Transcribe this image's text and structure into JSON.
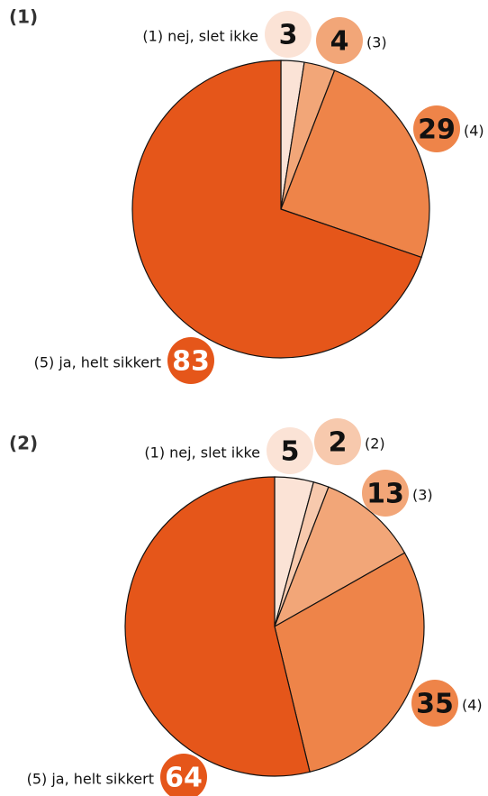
{
  "chart_data": [
    {
      "type": "pie",
      "title": "(1)",
      "categories": [
        "(1) nej, slet ikke",
        "(3)",
        "(4)",
        "(5) ja, helt sikkert"
      ],
      "values": [
        3,
        4,
        29,
        83
      ],
      "colors": [
        "#fbe3d6",
        "#f2a678",
        "#ee8449",
        "#e5561a"
      ]
    },
    {
      "type": "pie",
      "title": "(2)",
      "categories": [
        "(1) nej, slet ikke",
        "(2)",
        "(3)",
        "(4)",
        "(5) ja, helt sikkert"
      ],
      "values": [
        5,
        2,
        13,
        35,
        64
      ],
      "colors": [
        "#fbe3d6",
        "#f7c9ad",
        "#f2a678",
        "#ee8449",
        "#e5561a"
      ]
    }
  ]
}
